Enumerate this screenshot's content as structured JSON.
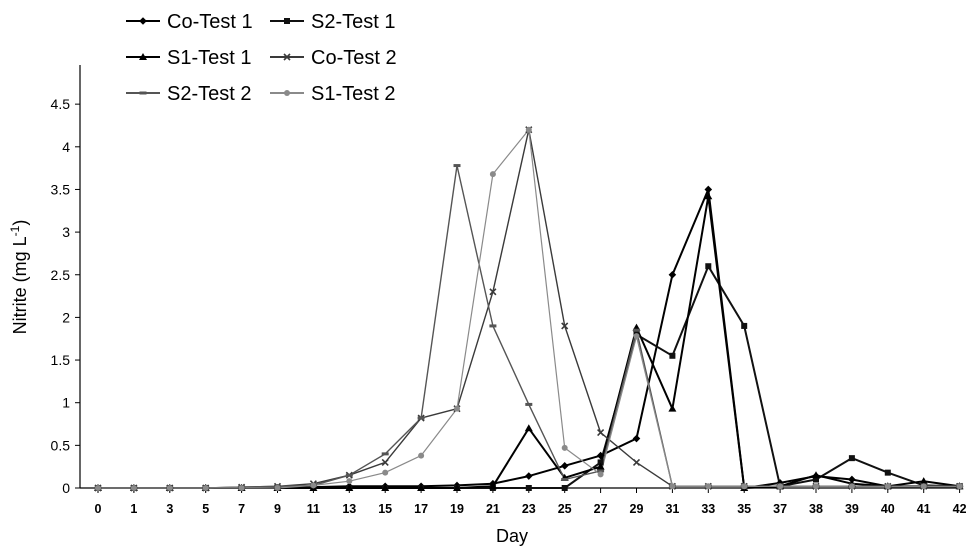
{
  "chart_data": {
    "type": "line",
    "title": "",
    "xlabel": "Day",
    "ylabel": "Nitrite (mg L",
    "ylabel_sup": "-1",
    "ylabel_close": ")",
    "x_tick_labels": [
      "0",
      "1",
      "3",
      "5",
      "7",
      "9",
      "11",
      "13",
      "15",
      "17",
      "19",
      "21",
      "23",
      "25",
      "27",
      "29",
      "31",
      "33",
      "35",
      "37",
      "38",
      "39",
      "40",
      "41",
      "42"
    ],
    "y_tick_labels": [
      "0",
      "0.5",
      "1",
      "1.5",
      "2",
      "2.5",
      "3",
      "3.5",
      "4",
      "4.5"
    ],
    "ylim": [
      0,
      4.5
    ],
    "grid": false,
    "legend_position": "top-left",
    "series": [
      {
        "name": "Co-Test 1",
        "marker": "diamond",
        "color": "#000000",
        "values": [
          0,
          0,
          0,
          0,
          0,
          0,
          0.01,
          0.02,
          0.02,
          0.02,
          0.03,
          0.05,
          0.14,
          0.26,
          0.38,
          0.58,
          2.5,
          3.5,
          0,
          0.06,
          0.14,
          0.1,
          0.02,
          0.02,
          0.02
        ]
      },
      {
        "name": "S2-Test 1",
        "marker": "square",
        "color": "#111111",
        "values": [
          0,
          0,
          0,
          0,
          0,
          0,
          0,
          0,
          0,
          0,
          0,
          0,
          0,
          0,
          0.3,
          1.8,
          1.55,
          2.6,
          1.9,
          0.02,
          0.1,
          0.35,
          0.18,
          0.03,
          0.02
        ]
      },
      {
        "name": "S1-Test 1",
        "marker": "triangle",
        "color": "#000000",
        "values": [
          0,
          0,
          0,
          0,
          0,
          0,
          0,
          0,
          0,
          0,
          0,
          0.02,
          0.7,
          0.12,
          0.25,
          1.88,
          0.93,
          3.42,
          0,
          0.02,
          0.15,
          0.05,
          0.02,
          0.08,
          0.02
        ]
      },
      {
        "name": "Co-Test 2",
        "marker": "x",
        "color": "#3a3a3a",
        "values": [
          0,
          0,
          0,
          0,
          0.01,
          0.02,
          0.05,
          0.15,
          0.3,
          0.82,
          0.93,
          2.3,
          4.2,
          1.9,
          0.65,
          0.3,
          0.02,
          0.02,
          0.02,
          0.02,
          0.02,
          0.02,
          0.02,
          0.02,
          0.02
        ]
      },
      {
        "name": "S2-Test 2",
        "marker": "dash",
        "color": "#555555",
        "values": [
          0,
          0,
          0,
          0,
          0.01,
          0.02,
          0.03,
          0.15,
          0.4,
          0.82,
          3.78,
          1.9,
          0.98,
          0.1,
          0.2,
          1.85,
          0.02,
          0.02,
          0.02,
          0.02,
          0.02,
          0.02,
          0.02,
          0.02,
          0.02
        ]
      },
      {
        "name": "S1-Test 2",
        "marker": "circle",
        "color": "#8a8a8a",
        "values": [
          0,
          0,
          0,
          0,
          0,
          0,
          0.03,
          0.08,
          0.18,
          0.38,
          0.93,
          3.68,
          4.2,
          0.47,
          0.16,
          1.78,
          0.02,
          0.02,
          0.02,
          0.02,
          0.02,
          0.02,
          0.02,
          0.02,
          0.02
        ]
      }
    ]
  }
}
